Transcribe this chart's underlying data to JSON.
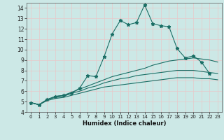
{
  "title": "",
  "xlabel": "Humidex (Indice chaleur)",
  "bg_color": "#cce8e6",
  "grid_color": "#b8d8d5",
  "line_color": "#1a6e65",
  "xlim": [
    -0.5,
    23.5
  ],
  "ylim": [
    4,
    14.5
  ],
  "xticks": [
    0,
    1,
    2,
    3,
    4,
    5,
    6,
    7,
    8,
    9,
    10,
    11,
    12,
    13,
    14,
    15,
    16,
    17,
    18,
    19,
    20,
    21,
    22,
    23
  ],
  "yticks": [
    4,
    5,
    6,
    7,
    8,
    9,
    10,
    11,
    12,
    13,
    14
  ],
  "line1_x": [
    0,
    1,
    2,
    3,
    4,
    5,
    6,
    7,
    8,
    9,
    10,
    11,
    12,
    13,
    14,
    15,
    16,
    17,
    18,
    19,
    20,
    21,
    22
  ],
  "line1_y": [
    4.9,
    4.7,
    5.2,
    5.5,
    5.6,
    5.8,
    6.3,
    7.5,
    7.4,
    9.3,
    11.5,
    12.8,
    12.4,
    12.6,
    14.3,
    12.5,
    12.3,
    12.2,
    10.1,
    9.2,
    9.4,
    8.8,
    7.7
  ],
  "line2_x": [
    0,
    1,
    2,
    3,
    4,
    5,
    6,
    7,
    8,
    9,
    10,
    11,
    12,
    13,
    14,
    15,
    16,
    17,
    18,
    19,
    20,
    21,
    22,
    23
  ],
  "line2_y": [
    4.9,
    4.7,
    5.2,
    5.5,
    5.6,
    5.9,
    6.2,
    6.5,
    6.8,
    7.1,
    7.4,
    7.6,
    7.8,
    8.0,
    8.2,
    8.5,
    8.7,
    8.9,
    9.0,
    9.1,
    9.2,
    9.1,
    9.0,
    8.8
  ],
  "line3_x": [
    0,
    1,
    2,
    3,
    4,
    5,
    6,
    7,
    8,
    9,
    10,
    11,
    12,
    13,
    14,
    15,
    16,
    17,
    18,
    19,
    20,
    21,
    22,
    23
  ],
  "line3_y": [
    4.9,
    4.7,
    5.2,
    5.4,
    5.5,
    5.8,
    6.0,
    6.3,
    6.5,
    6.8,
    7.0,
    7.2,
    7.3,
    7.5,
    7.6,
    7.7,
    7.8,
    7.9,
    8.0,
    8.0,
    8.0,
    7.9,
    7.8,
    7.7
  ],
  "line4_x": [
    0,
    1,
    2,
    3,
    4,
    5,
    6,
    7,
    8,
    9,
    10,
    11,
    12,
    13,
    14,
    15,
    16,
    17,
    18,
    19,
    20,
    21,
    22,
    23
  ],
  "line4_y": [
    4.9,
    4.7,
    5.1,
    5.3,
    5.4,
    5.6,
    5.8,
    6.0,
    6.2,
    6.4,
    6.5,
    6.6,
    6.7,
    6.8,
    6.9,
    7.0,
    7.1,
    7.2,
    7.3,
    7.3,
    7.3,
    7.2,
    7.2,
    7.1
  ]
}
